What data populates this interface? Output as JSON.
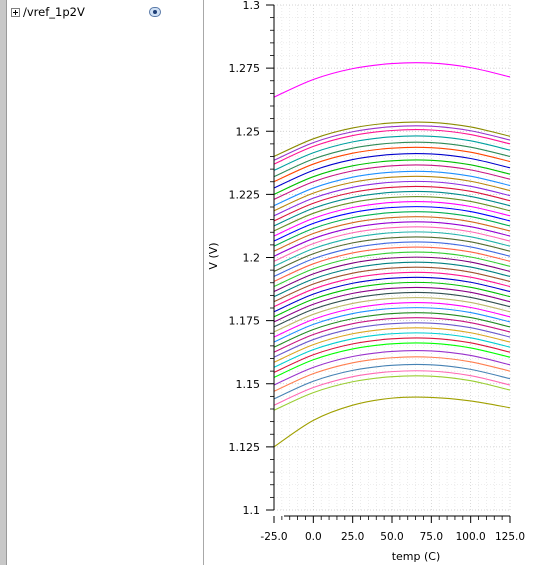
{
  "tree": {
    "items": [
      {
        "label": "/vref_1p2V",
        "icon": "eye-icon"
      }
    ]
  },
  "chart_data": {
    "type": "line",
    "title": "",
    "xlabel": "temp (C)",
    "ylabel": "V (V)",
    "xlim": [
      -25.0,
      125.0
    ],
    "ylim": [
      1.1,
      1.3
    ],
    "xticks": [
      -25.0,
      0.0,
      25.0,
      50.0,
      75.0,
      100.0,
      125.0
    ],
    "xtick_labels": [
      "-25.0",
      "0.0",
      "25.0",
      "50.0",
      "75.0",
      "100.0",
      "125.0"
    ],
    "yticks": [
      1.1,
      1.125,
      1.15,
      1.175,
      1.2,
      1.225,
      1.25,
      1.275,
      1.3
    ],
    "ytick_labels": [
      "1.1",
      "1.125",
      "1.15",
      "1.175",
      "1.2",
      "1.225",
      "1.25",
      "1.275",
      "1.3"
    ],
    "grid": true,
    "x": [
      -25,
      0,
      25,
      50,
      75,
      100,
      125
    ],
    "series": [
      {
        "color": "#ff00ff",
        "values": [
          1.2635,
          1.2705,
          1.2748,
          1.2768,
          1.277,
          1.2752,
          1.2715
        ]
      },
      {
        "color": "#8b8b00",
        "values": [
          1.24,
          1.247,
          1.2513,
          1.2533,
          1.2535,
          1.2517,
          1.248
        ]
      },
      {
        "color": "#9932cc",
        "values": [
          1.2385,
          1.2455,
          1.2498,
          1.2518,
          1.252,
          1.2502,
          1.2465
        ]
      },
      {
        "color": "#ff1493",
        "values": [
          1.237,
          1.244,
          1.2483,
          1.2503,
          1.2505,
          1.2487,
          1.245
        ]
      },
      {
        "color": "#00a0a0",
        "values": [
          1.2345,
          1.2415,
          1.2458,
          1.2478,
          1.248,
          1.2462,
          1.2425
        ]
      },
      {
        "color": "#2e8b57",
        "values": [
          1.232,
          1.239,
          1.2433,
          1.2453,
          1.2455,
          1.2437,
          1.24
        ]
      },
      {
        "color": "#ff4500",
        "values": [
          1.23,
          1.237,
          1.2413,
          1.2433,
          1.2435,
          1.2417,
          1.238
        ]
      },
      {
        "color": "#0000cd",
        "values": [
          1.2275,
          1.2345,
          1.2388,
          1.2408,
          1.241,
          1.2392,
          1.2355
        ]
      },
      {
        "color": "#00c000",
        "values": [
          1.225,
          1.232,
          1.2363,
          1.2383,
          1.2385,
          1.2367,
          1.233
        ]
      },
      {
        "color": "#c71585",
        "values": [
          1.223,
          1.23,
          1.2343,
          1.2363,
          1.2365,
          1.2347,
          1.231
        ]
      },
      {
        "color": "#1e90ff",
        "values": [
          1.2205,
          1.2275,
          1.2318,
          1.2338,
          1.234,
          1.2322,
          1.2285
        ]
      },
      {
        "color": "#b8860b",
        "values": [
          1.2185,
          1.2255,
          1.2298,
          1.2318,
          1.232,
          1.2302,
          1.2265
        ]
      },
      {
        "color": "#8a2be2",
        "values": [
          1.2165,
          1.2235,
          1.2278,
          1.2298,
          1.23,
          1.2282,
          1.2245
        ]
      },
      {
        "color": "#dc143c",
        "values": [
          1.2145,
          1.2215,
          1.2258,
          1.2278,
          1.228,
          1.2262,
          1.2225
        ]
      },
      {
        "color": "#008b8b",
        "values": [
          1.2125,
          1.2195,
          1.2238,
          1.2258,
          1.226,
          1.2242,
          1.2205
        ]
      },
      {
        "color": "#6b8e23",
        "values": [
          1.2105,
          1.2175,
          1.2218,
          1.2238,
          1.224,
          1.2222,
          1.2185
        ]
      },
      {
        "color": "#ff00ff",
        "values": [
          1.2085,
          1.2155,
          1.2198,
          1.2218,
          1.222,
          1.2202,
          1.2165
        ]
      },
      {
        "color": "#0000ff",
        "values": [
          1.2065,
          1.2135,
          1.2178,
          1.2198,
          1.22,
          1.2182,
          1.2145
        ]
      },
      {
        "color": "#00b050",
        "values": [
          1.2045,
          1.2115,
          1.2158,
          1.2178,
          1.218,
          1.2162,
          1.2125
        ]
      },
      {
        "color": "#d2691e",
        "values": [
          1.2025,
          1.2095,
          1.2138,
          1.2158,
          1.216,
          1.2142,
          1.2105
        ]
      },
      {
        "color": "#9400d3",
        "values": [
          1.2005,
          1.2075,
          1.2118,
          1.2138,
          1.214,
          1.2122,
          1.2085
        ]
      },
      {
        "color": "#ff69b4",
        "values": [
          1.1985,
          1.2055,
          1.2098,
          1.2118,
          1.212,
          1.2102,
          1.2065
        ]
      },
      {
        "color": "#20b2aa",
        "values": [
          1.1965,
          1.2035,
          1.2078,
          1.2098,
          1.21,
          1.2082,
          1.2045
        ]
      },
      {
        "color": "#556b2f",
        "values": [
          1.1945,
          1.2015,
          1.2058,
          1.2078,
          1.208,
          1.2062,
          1.2025
        ]
      },
      {
        "color": "#4169e1",
        "values": [
          1.1925,
          1.1995,
          1.2038,
          1.2058,
          1.206,
          1.2042,
          1.2005
        ]
      },
      {
        "color": "#ff6347",
        "values": [
          1.1905,
          1.1975,
          1.2018,
          1.2038,
          1.204,
          1.2022,
          1.1985
        ]
      },
      {
        "color": "#32cd32",
        "values": [
          1.1885,
          1.1955,
          1.1998,
          1.2018,
          1.202,
          1.2002,
          1.1965
        ]
      },
      {
        "color": "#800080",
        "values": [
          1.1865,
          1.1935,
          1.1978,
          1.1998,
          1.2,
          1.1982,
          1.1945
        ]
      },
      {
        "color": "#008080",
        "values": [
          1.1845,
          1.1915,
          1.1958,
          1.1978,
          1.198,
          1.1962,
          1.1925
        ]
      },
      {
        "color": "#a0522d",
        "values": [
          1.1825,
          1.1895,
          1.1938,
          1.1958,
          1.196,
          1.1942,
          1.1905
        ]
      },
      {
        "color": "#ff1493",
        "values": [
          1.1805,
          1.1875,
          1.1918,
          1.1938,
          1.194,
          1.1922,
          1.1885
        ]
      },
      {
        "color": "#0000cd",
        "values": [
          1.1785,
          1.1855,
          1.1898,
          1.1918,
          1.192,
          1.1902,
          1.1865
        ]
      },
      {
        "color": "#00c000",
        "values": [
          1.1765,
          1.1835,
          1.1878,
          1.1898,
          1.19,
          1.1882,
          1.1845
        ]
      },
      {
        "color": "#8b008b",
        "values": [
          1.1745,
          1.1815,
          1.1858,
          1.1878,
          1.188,
          1.1862,
          1.1825
        ]
      },
      {
        "color": "#2f4f4f",
        "values": [
          1.1725,
          1.1795,
          1.1838,
          1.1858,
          1.186,
          1.1842,
          1.1805
        ]
      },
      {
        "color": "#bdb76b",
        "values": [
          1.1705,
          1.1775,
          1.1818,
          1.1838,
          1.184,
          1.1822,
          1.1785
        ]
      },
      {
        "color": "#ff00ff",
        "values": [
          1.1685,
          1.1755,
          1.1798,
          1.1818,
          1.182,
          1.1802,
          1.1765
        ]
      },
      {
        "color": "#1e90ff",
        "values": [
          1.1665,
          1.1735,
          1.1778,
          1.1798,
          1.18,
          1.1782,
          1.1745
        ]
      },
      {
        "color": "#228b22",
        "values": [
          1.1645,
          1.1715,
          1.1758,
          1.1778,
          1.178,
          1.1762,
          1.1725
        ]
      },
      {
        "color": "#c71585",
        "values": [
          1.1625,
          1.1695,
          1.1738,
          1.1758,
          1.176,
          1.1742,
          1.1705
        ]
      },
      {
        "color": "#6a5acd",
        "values": [
          1.1605,
          1.1675,
          1.1718,
          1.1738,
          1.174,
          1.1722,
          1.1685
        ]
      },
      {
        "color": "#daa520",
        "values": [
          1.1585,
          1.1655,
          1.1698,
          1.1718,
          1.172,
          1.1702,
          1.1665
        ]
      },
      {
        "color": "#00ced1",
        "values": [
          1.1565,
          1.1635,
          1.1678,
          1.1698,
          1.17,
          1.1682,
          1.1645
        ]
      },
      {
        "color": "#dc143c",
        "values": [
          1.1545,
          1.1615,
          1.1658,
          1.1678,
          1.168,
          1.1662,
          1.1625
        ]
      },
      {
        "color": "#00ff00",
        "values": [
          1.1525,
          1.1595,
          1.1638,
          1.1658,
          1.166,
          1.1642,
          1.1605
        ]
      },
      {
        "color": "#9932cc",
        "values": [
          1.1495,
          1.1565,
          1.1608,
          1.1628,
          1.163,
          1.1612,
          1.1575
        ]
      },
      {
        "color": "#ff7f50",
        "values": [
          1.147,
          1.154,
          1.1583,
          1.1603,
          1.1605,
          1.1587,
          1.155
        ]
      },
      {
        "color": "#4682b4",
        "values": [
          1.144,
          1.151,
          1.1553,
          1.1573,
          1.1575,
          1.1557,
          1.152
        ]
      },
      {
        "color": "#ff69b4",
        "values": [
          1.1415,
          1.1485,
          1.1528,
          1.1548,
          1.155,
          1.1532,
          1.1495
        ]
      },
      {
        "color": "#9acd32",
        "values": [
          1.1395,
          1.1465,
          1.1508,
          1.1528,
          1.153,
          1.1512,
          1.1475
        ]
      },
      {
        "color": "#a0a000",
        "values": [
          1.125,
          1.1355,
          1.1415,
          1.1443,
          1.1446,
          1.1432,
          1.1405
        ]
      }
    ]
  }
}
